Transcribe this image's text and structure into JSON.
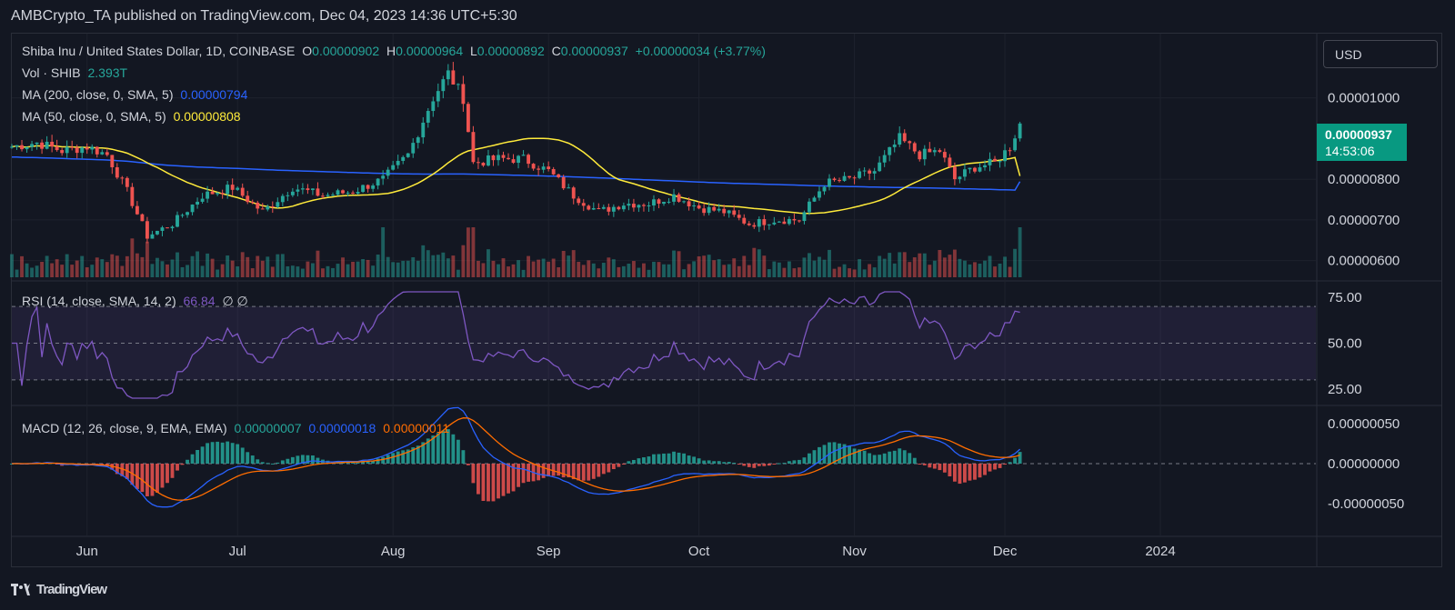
{
  "header": {
    "text": "AMBCrypto_TA published on TradingView.com, Dec 04, 2023 14:36 UTC+5:30"
  },
  "legend": {
    "symbol": "Shiba Inu / United States Dollar, 1D, COINBASE",
    "o_label": "O",
    "o": "0.00000902",
    "h_label": "H",
    "h": "0.00000964",
    "l_label": "L",
    "l": "0.00000892",
    "c_label": "C",
    "c": "0.00000937",
    "change": "+0.00000034 (+3.77%)",
    "vol_label": "Vol · SHIB",
    "vol": "2.393T",
    "ma200_label": "MA (200, close, 0, SMA, 5)",
    "ma200": "0.00000794",
    "ma50_label": "MA (50, close, 0, SMA, 5)",
    "ma50": "0.00000808",
    "rsi_label": "RSI (14, close, SMA, 14, 2)",
    "rsi": "66.84",
    "rsi_extra": "∅ ∅",
    "macd_label": "MACD (12, 26, close, 9, EMA, EMA)",
    "macd_hist": "0.00000007",
    "macd_line": "0.00000018",
    "macd_signal": "0.00000011"
  },
  "currency_selector": {
    "value": "USD"
  },
  "price_tag": {
    "price": "0.00000937",
    "countdown": "14:53:06"
  },
  "footer": {
    "brand": "TradingView",
    "logo_icon": "tradingview-logo-icon"
  },
  "colors": {
    "up": "#26a69a",
    "down": "#ef5350",
    "ma200": "#2962ff",
    "ma50": "#ffeb3b",
    "rsi": "#7e57c2",
    "macd": "#2962ff",
    "signal": "#ff6d00",
    "last_price_bg": "#089981"
  },
  "chart_data": {
    "type": "candlestick",
    "x_tick_labels": [
      "Jun",
      "Jul",
      "Aug",
      "Sep",
      "Oct",
      "Nov",
      "Dec",
      "2024"
    ],
    "x_tick_dates": [
      "2023-06-01",
      "2023-07-01",
      "2023-08-01",
      "2023-09-01",
      "2023-10-01",
      "2023-11-01",
      "2023-12-01",
      "2024-01-01"
    ],
    "price_axis": {
      "ticks": [
        "0.00000600",
        "0.00000700",
        "0.00000800",
        "0.00001000"
      ],
      "ylim": [
        5.5e-06,
        1.14e-05
      ]
    },
    "rsi_axis": {
      "ticks": [
        "25.00",
        "50.00",
        "75.00"
      ],
      "band": [
        30,
        70
      ],
      "mid": 50
    },
    "macd_axis": {
      "ticks": [
        "-0.00000050",
        "0.00000000",
        "0.00000050"
      ]
    },
    "price_series": {
      "dates": [
        "2023-05-17",
        "2023-05-22",
        "2023-05-27",
        "2023-06-01",
        "2023-06-05",
        "2023-06-09",
        "2023-06-13",
        "2023-06-18",
        "2023-06-24",
        "2023-06-30",
        "2023-07-06",
        "2023-07-12",
        "2023-07-18",
        "2023-07-24",
        "2023-07-30",
        "2023-08-04",
        "2023-08-09",
        "2023-08-12",
        "2023-08-15",
        "2023-08-17",
        "2023-08-22",
        "2023-08-27",
        "2023-09-01",
        "2023-09-06",
        "2023-09-11",
        "2023-09-16",
        "2023-09-21",
        "2023-09-26",
        "2023-10-01",
        "2023-10-06",
        "2023-10-11",
        "2023-10-16",
        "2023-10-21",
        "2023-10-26",
        "2023-10-31",
        "2023-11-05",
        "2023-11-10",
        "2023-11-14",
        "2023-11-18",
        "2023-11-21",
        "2023-11-25",
        "2023-11-29",
        "2023-12-02",
        "2023-12-04"
      ],
      "close": [
        8.8e-06,
        8.9e-06,
        8.7e-06,
        8.8e-06,
        8.6e-06,
        7.7e-06,
        6.6e-06,
        6.9e-06,
        7.6e-06,
        7.8e-06,
        7.2e-06,
        7.8e-06,
        7.6e-06,
        7.7e-06,
        8e-06,
        8.6e-06,
        1e-05,
        1.06e-05,
        1e-05,
        8.4e-06,
        8.5e-06,
        8.5e-06,
        8.2e-06,
        7.6e-06,
        7.2e-06,
        7.4e-06,
        7.4e-06,
        7.6e-06,
        7.3e-06,
        7.2e-06,
        6.9e-06,
        7e-06,
        7e-06,
        7.9e-06,
        8e-06,
        8.2e-06,
        9e-06,
        8.6e-06,
        8.7e-06,
        8e-06,
        8.3e-06,
        8.4e-06,
        8.8e-06,
        9.37e-06
      ]
    },
    "volume": {
      "last": "2.393T"
    },
    "ma200": {
      "last": 7.94e-06
    },
    "ma50": {
      "last": 8.08e-06
    },
    "rsi": {
      "last": 66.84
    },
    "macd": {
      "histogram_last": 7e-08,
      "macd_last": 1.8e-07,
      "signal_last": 1.1e-07
    }
  }
}
